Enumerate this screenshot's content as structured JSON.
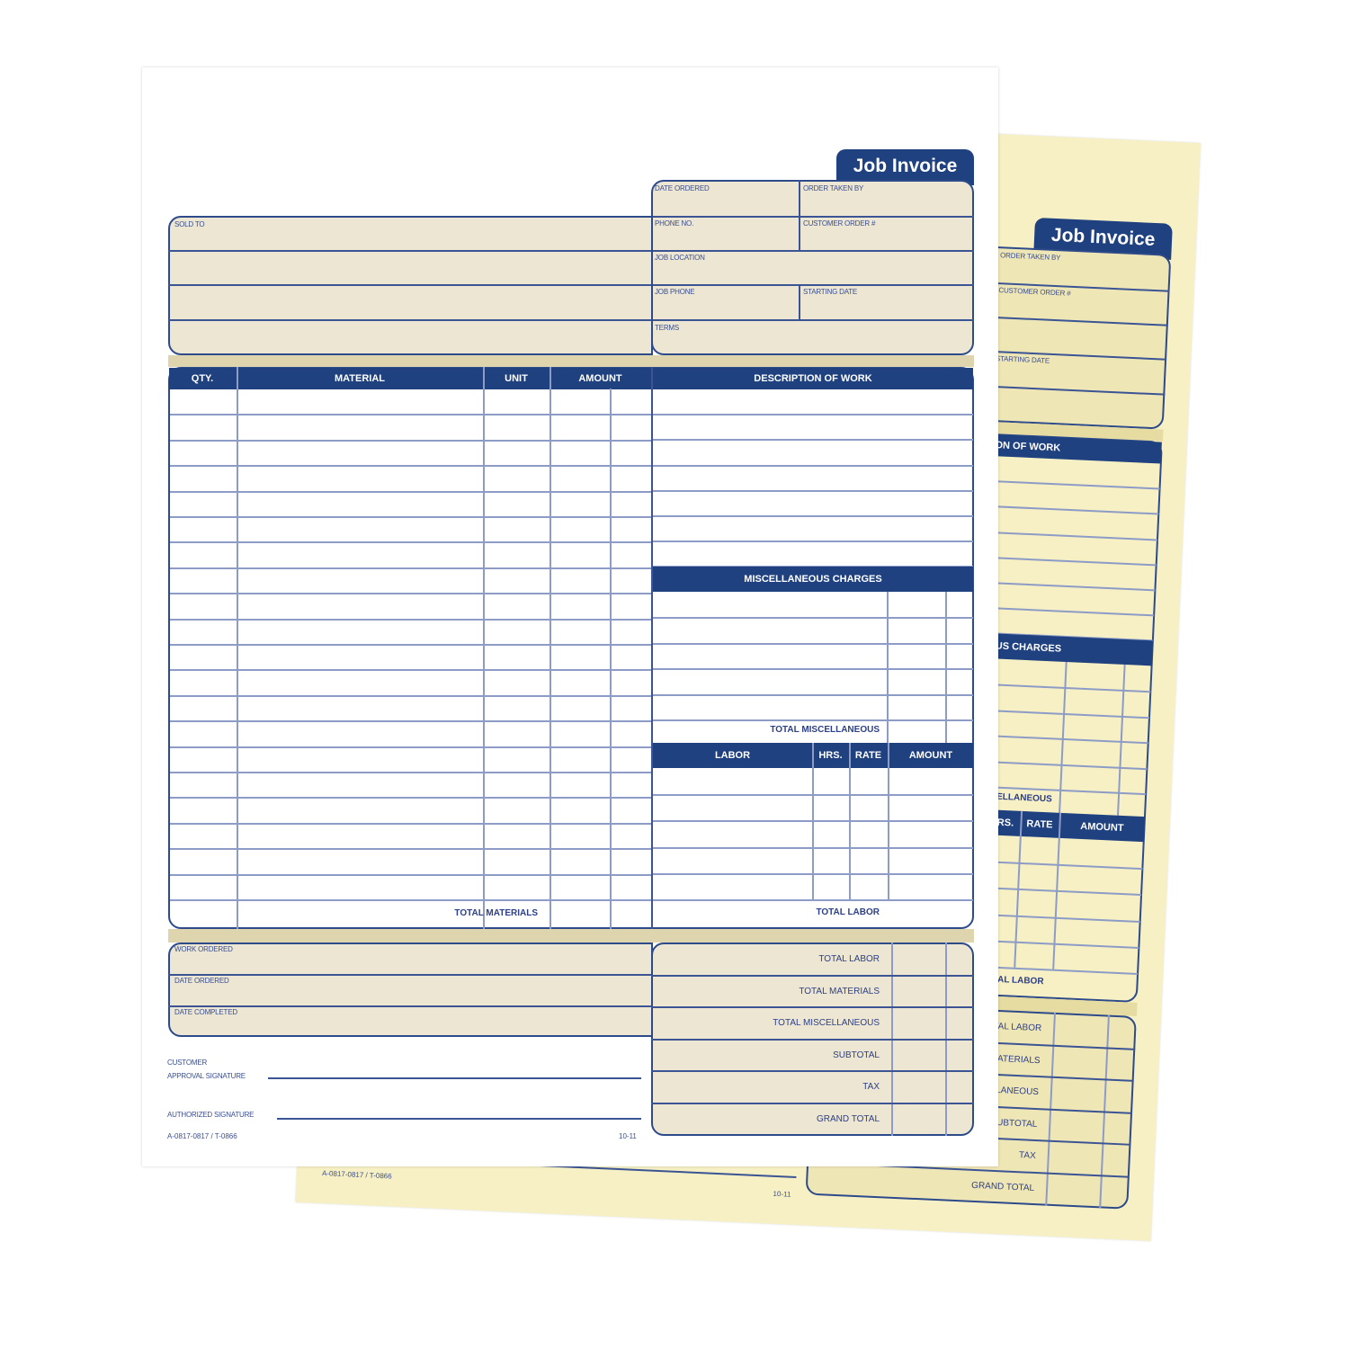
{
  "title": "Job Invoice",
  "header_fields": {
    "date_ordered": "DATE ORDERED",
    "order_taken_by": "ORDER TAKEN BY",
    "phone_no": "PHONE NO.",
    "customer_order": "CUSTOMER ORDER #",
    "job_location": "JOB LOCATION",
    "job_phone": "JOB PHONE",
    "starting_date": "STARTING DATE",
    "terms": "TERMS"
  },
  "sold_to": "SOLD TO",
  "materials": {
    "columns": [
      "QTY.",
      "MATERIAL",
      "UNIT",
      "AMOUNT"
    ],
    "total": "TOTAL MATERIALS"
  },
  "description": "DESCRIPTION OF WORK",
  "misc": {
    "title": "MISCELLANEOUS CHARGES",
    "total": "TOTAL MISCELLANEOUS"
  },
  "labor": {
    "columns": [
      "LABOR",
      "HRS.",
      "RATE",
      "AMOUNT"
    ],
    "total": "TOTAL LABOR"
  },
  "work": [
    "WORK ORDERED",
    "DATE ORDERED",
    "DATE COMPLETED"
  ],
  "totals": [
    "TOTAL LABOR",
    "TOTAL MATERIALS",
    "TOTAL MISCELLANEOUS",
    "SUBTOTAL",
    "TAX",
    "GRAND TOTAL"
  ],
  "signatures": {
    "customer_line1": "CUSTOMER",
    "customer_line2": "APPROVAL SIGNATURE",
    "authorized": "AUTHORIZED SIGNATURE"
  },
  "footer": {
    "form_number": "A-0817-0817 / T-0866",
    "revision": "10-11"
  },
  "colors": {
    "navy": "#1f4180",
    "line": "#3a5494",
    "tan": "#ece6d3",
    "copy_paper": "#f6f0c4"
  }
}
